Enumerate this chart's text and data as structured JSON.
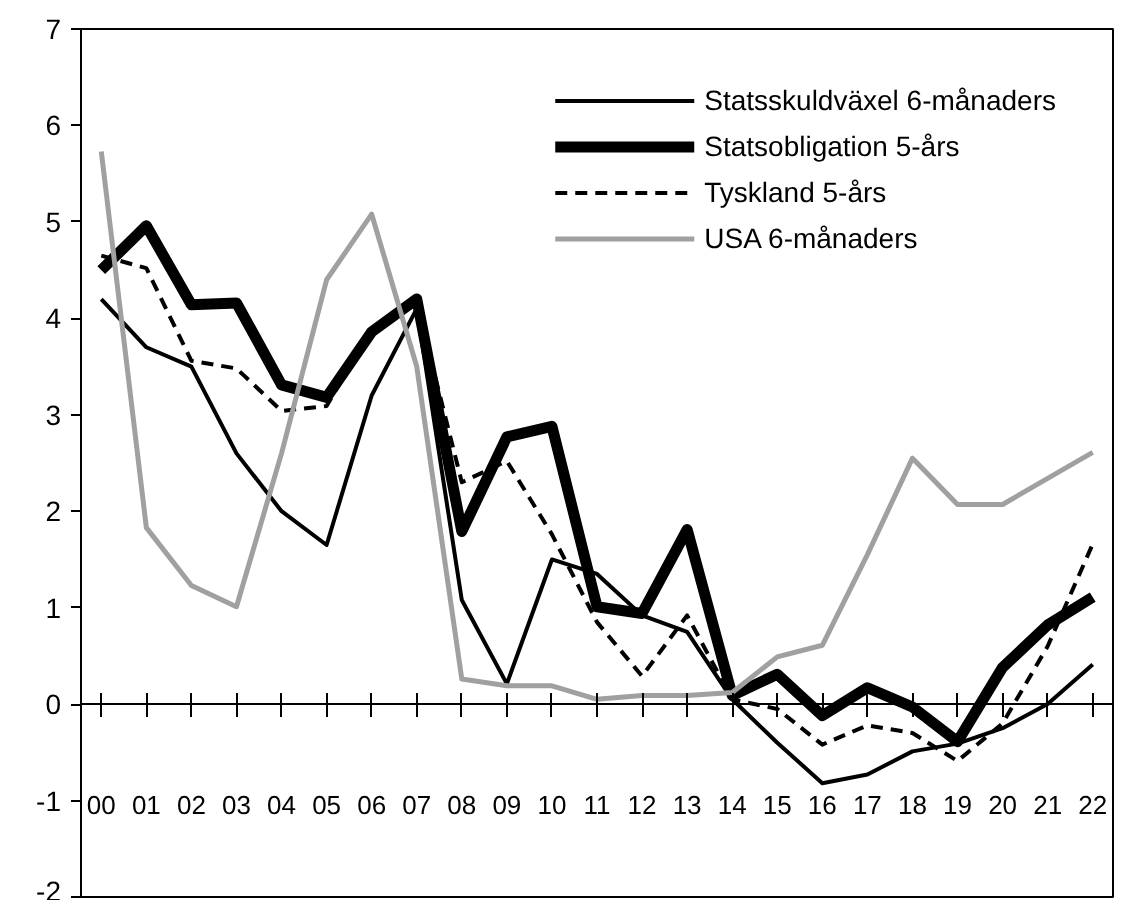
{
  "chart_data": {
    "type": "line",
    "categories": [
      "00",
      "01",
      "02",
      "03",
      "04",
      "05",
      "06",
      "07",
      "08",
      "09",
      "10",
      "11",
      "12",
      "13",
      "14",
      "15",
      "16",
      "17",
      "18",
      "19",
      "20",
      "21",
      "22"
    ],
    "series": [
      {
        "name": "Statsskuldväxel 6-månaders",
        "color": "#000000",
        "line_style": "solid",
        "values": [
          4.2,
          3.7,
          3.5,
          2.6,
          2.0,
          1.65,
          3.2,
          4.1,
          1.08,
          0.21,
          1.5,
          1.35,
          0.92,
          0.75,
          0.05,
          -0.4,
          -0.82,
          -0.73,
          -0.49,
          -0.41,
          -0.25,
          0.0,
          0.41
        ]
      },
      {
        "name": "Statsobligation 5-års",
        "color": "#000000",
        "line_style": "solid",
        "values": [
          4.5,
          4.96,
          4.14,
          4.16,
          3.31,
          3.18,
          3.86,
          4.2,
          1.79,
          2.77,
          2.88,
          1.01,
          0.94,
          1.81,
          0.09,
          0.31,
          -0.12,
          0.17,
          -0.03,
          -0.39,
          0.38,
          0.82,
          1.11
        ]
      },
      {
        "name": "Tyskland 5-års",
        "color": "#000000",
        "line_style": "dashed",
        "values": [
          4.65,
          4.52,
          3.56,
          3.48,
          3.04,
          3.09,
          3.9,
          4.15,
          2.3,
          2.52,
          1.76,
          0.85,
          0.29,
          0.92,
          0.05,
          -0.05,
          -0.42,
          -0.22,
          -0.3,
          -0.59,
          -0.2,
          0.6,
          1.66
        ]
      },
      {
        "name": "USA 6-månaders",
        "color": "#a0a0a0",
        "line_style": "solid",
        "values": [
          5.73,
          1.83,
          1.23,
          1.01,
          2.6,
          4.4,
          5.08,
          3.5,
          0.26,
          0.19,
          0.19,
          0.05,
          0.09,
          0.09,
          0.12,
          0.49,
          0.61,
          1.55,
          2.55,
          2.07,
          2.07,
          2.34,
          2.61
        ]
      }
    ],
    "ylim": [
      -2,
      7
    ],
    "yticks": [
      -2,
      -1,
      0,
      1,
      2,
      3,
      4,
      5,
      6,
      7
    ],
    "ref_lines": [
      {
        "axis": "y",
        "value": 0,
        "color": "#000000",
        "line_style": "solid"
      }
    ],
    "grid": false,
    "legend": "top right"
  }
}
